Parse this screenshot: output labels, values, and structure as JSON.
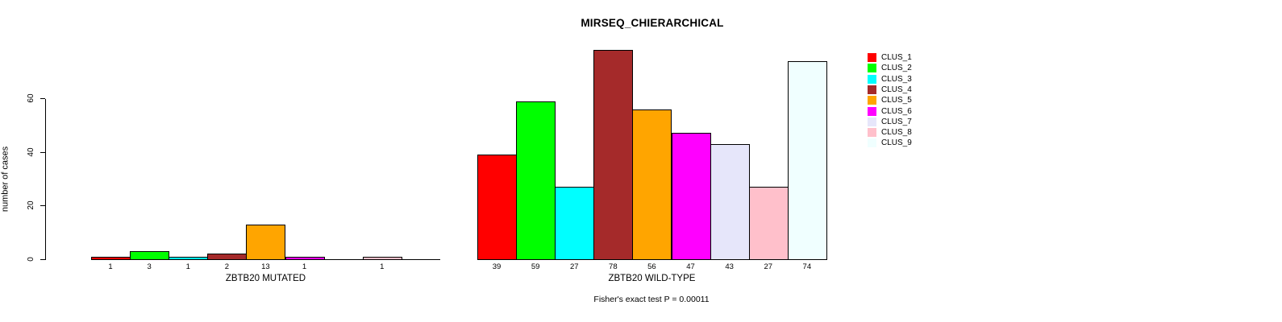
{
  "title": "MIRSEQ_CHIERARCHICAL",
  "footer": "Fisher's exact test P = 0.00011",
  "chart_data": {
    "type": "bar",
    "title": "MIRSEQ_CHIERARCHICAL",
    "ylabel": "number of cases",
    "yticks": [
      "0",
      "20",
      "40",
      "60"
    ],
    "ylim": [
      0,
      78
    ],
    "grid": false,
    "legend_position": "right",
    "hide_zero_value_labels": true,
    "series": [
      {
        "name": "CLUS_1",
        "color": "#FF0000"
      },
      {
        "name": "CLUS_2",
        "color": "#00FF00"
      },
      {
        "name": "CLUS_3",
        "color": "#00FFFF"
      },
      {
        "name": "CLUS_4",
        "color": "#A52A2A"
      },
      {
        "name": "CLUS_5",
        "color": "#FFA500"
      },
      {
        "name": "CLUS_6",
        "color": "#FF00FF"
      },
      {
        "name": "CLUS_7",
        "color": "#E6E6FA"
      },
      {
        "name": "CLUS_8",
        "color": "#FFC0CB"
      },
      {
        "name": "CLUS_9",
        "color": "#F0FFFF"
      }
    ],
    "groups": [
      {
        "label": "ZBTB20 MUTATED",
        "values": [
          1,
          3,
          1,
          2,
          13,
          1,
          0,
          1,
          0
        ]
      },
      {
        "label": "ZBTB20 WILD-TYPE",
        "values": [
          39,
          59,
          27,
          78,
          56,
          47,
          43,
          27,
          74
        ]
      }
    ],
    "annotation": "Fisher's exact test P = 0.00011"
  }
}
